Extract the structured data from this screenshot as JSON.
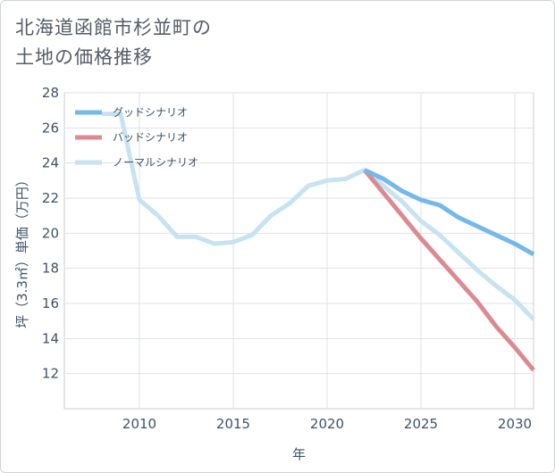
{
  "title_lines": [
    "北海道函館市杉並町の",
    "土地の価格推移"
  ],
  "chart_data": {
    "type": "line",
    "xlabel": "年",
    "ylabel": "坪（3.3㎡）単価（万円）",
    "xlim": [
      2006,
      2031
    ],
    "ylim": [
      10,
      28
    ],
    "x_ticks": [
      2010,
      2015,
      2020,
      2025,
      2030
    ],
    "y_ticks": [
      12,
      14,
      16,
      18,
      20,
      22,
      24,
      26,
      28
    ],
    "grid": true,
    "legend_position": "top-left",
    "series": [
      {
        "name": "グッドシナリオ",
        "color": "#74b9ea",
        "x": [
          2022,
          2023,
          2024,
          2025,
          2026,
          2027,
          2028,
          2029,
          2030,
          2031
        ],
        "y": [
          23.6,
          23.1,
          22.4,
          21.9,
          21.6,
          20.9,
          20.4,
          19.9,
          19.4,
          18.8
        ]
      },
      {
        "name": "バッドシナリオ",
        "color": "#db8a91",
        "x": [
          2022,
          2023,
          2024,
          2025,
          2026,
          2027,
          2028,
          2029,
          2030,
          2031
        ],
        "y": [
          23.6,
          22.3,
          21.0,
          19.7,
          18.5,
          17.3,
          16.1,
          14.7,
          13.5,
          12.2
        ]
      },
      {
        "name": "ノーマルシナリオ",
        "color": "#c7e2f0",
        "x": [
          2008,
          2009,
          2010,
          2011,
          2012,
          2013,
          2014,
          2015,
          2016,
          2017,
          2018,
          2019,
          2020,
          2021,
          2022,
          2023,
          2024,
          2025,
          2026,
          2027,
          2028,
          2029,
          2030,
          2031
        ],
        "y": [
          26.8,
          26.8,
          21.9,
          21.0,
          19.8,
          19.8,
          19.4,
          19.5,
          19.9,
          21.0,
          21.7,
          22.7,
          23.0,
          23.1,
          23.6,
          22.7,
          21.8,
          20.7,
          19.9,
          18.9,
          17.9,
          17.0,
          16.2,
          15.1
        ]
      }
    ]
  }
}
